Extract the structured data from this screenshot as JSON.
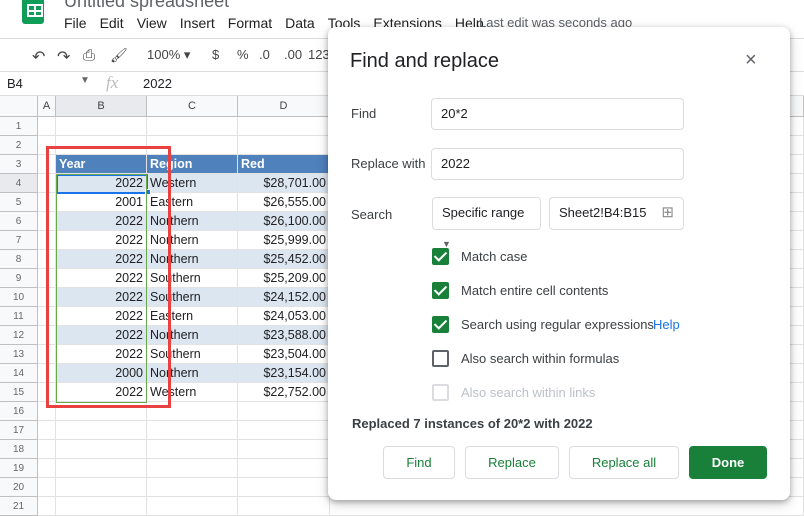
{
  "app": {
    "title": "Untitled spreadsheet",
    "last_edit": "Last edit was seconds ago",
    "menu": [
      "File",
      "Edit",
      "View",
      "Insert",
      "Format",
      "Data",
      "Tools",
      "Extensions",
      "Help"
    ]
  },
  "toolbar": {
    "zoom": "100%",
    "currency": "$",
    "percent": "%",
    "dec_less": ".0",
    "dec_more": ".00",
    "format": "123"
  },
  "formula_bar": {
    "cell_ref": "B4",
    "fx": "fx",
    "value": "2022"
  },
  "sheet": {
    "columns": [
      "A",
      "B",
      "C",
      "D"
    ],
    "rows": [
      "1",
      "2",
      "3",
      "4",
      "5",
      "6",
      "7",
      "8",
      "9",
      "10",
      "11",
      "12",
      "13",
      "14",
      "15",
      "16",
      "17",
      "18",
      "19",
      "20",
      "21"
    ],
    "headers": [
      "Year",
      "Region",
      "Red"
    ],
    "data": [
      [
        "2022",
        "Western",
        "$28,701.00"
      ],
      [
        "2001",
        "Eastern",
        "$26,555.00"
      ],
      [
        "2022",
        "Northern",
        "$26,100.00"
      ],
      [
        "2022",
        "Northern",
        "$25,999.00"
      ],
      [
        "2022",
        "Northern",
        "$25,452.00"
      ],
      [
        "2022",
        "Southern",
        "$25,209.00"
      ],
      [
        "2022",
        "Southern",
        "$24,152.00"
      ],
      [
        "2022",
        "Eastern",
        "$24,053.00"
      ],
      [
        "2022",
        "Northern",
        "$23,588.00"
      ],
      [
        "2022",
        "Southern",
        "$23,504.00"
      ],
      [
        "2000",
        "Northern",
        "$23,154.00"
      ],
      [
        "2022",
        "Western",
        "$22,752.00"
      ]
    ],
    "header_color": "#4f81bd",
    "band_color": "#dce6f1"
  },
  "dialog": {
    "title": "Find and replace",
    "find_label": "Find",
    "find_value": "20*2",
    "replace_label": "Replace with",
    "replace_value": "2022",
    "search_label": "Search",
    "search_scope": "Specific range",
    "range": "Sheet2!B4:B15",
    "options": [
      {
        "label": "Match case",
        "checked": true,
        "disabled": false
      },
      {
        "label": "Match entire cell contents",
        "checked": true,
        "disabled": false
      },
      {
        "label": "Search using regular expressions",
        "checked": true,
        "disabled": false
      },
      {
        "label": "Also search within formulas",
        "checked": false,
        "disabled": false
      },
      {
        "label": "Also search within links",
        "checked": false,
        "disabled": true
      }
    ],
    "help_link": "Help",
    "status": "Replaced 7 instances of 20*2 with 2022",
    "buttons": {
      "find": "Find",
      "replace": "Replace",
      "replace_all": "Replace all",
      "done": "Done"
    },
    "accent": "#188038"
  }
}
